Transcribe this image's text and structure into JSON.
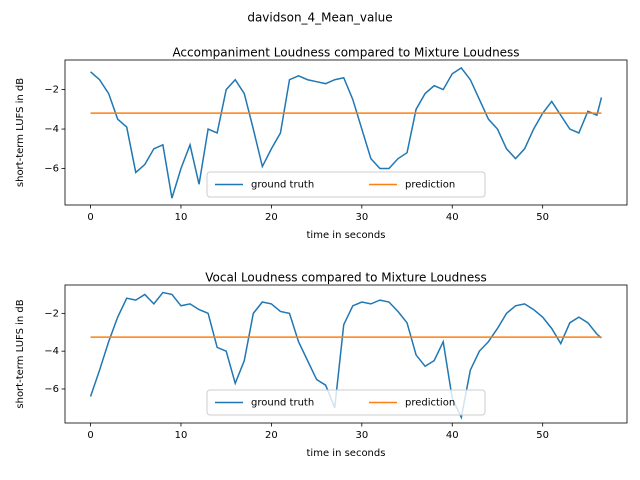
{
  "title": "davidson_4_Mean_value",
  "chart_data": [
    {
      "type": "line",
      "title": "Accompaniment Loudness compared to Mixture Loudness",
      "x_label": "time in seconds",
      "y_label": "short-term LUFS in dB",
      "x": [
        0,
        1,
        2,
        3,
        4,
        5,
        6,
        7,
        8,
        9,
        10,
        11,
        12,
        13,
        14,
        15,
        16,
        17,
        18,
        19,
        20,
        21,
        22,
        23,
        24,
        25,
        26,
        27,
        28,
        29,
        30,
        31,
        32,
        33,
        34,
        35,
        36,
        37,
        38,
        39,
        40,
        41,
        42,
        43,
        44,
        45,
        46,
        47,
        48,
        49,
        50,
        51,
        52,
        53,
        54,
        55,
        56,
        56.5
      ],
      "series": [
        {
          "name": "ground truth",
          "color": "#1f77b4",
          "values": [
            -1.1,
            -1.5,
            -2.2,
            -3.5,
            -3.9,
            -6.2,
            -5.8,
            -5.0,
            -4.8,
            -7.5,
            -6.0,
            -4.8,
            -6.8,
            -4.0,
            -4.2,
            -2.0,
            -1.5,
            -2.2,
            -4.0,
            -5.9,
            -5.0,
            -4.2,
            -1.5,
            -1.3,
            -1.5,
            -1.6,
            -1.7,
            -1.5,
            -1.4,
            -2.5,
            -4.0,
            -5.5,
            -6.0,
            -6.0,
            -5.5,
            -5.2,
            -3.0,
            -2.2,
            -1.8,
            -2.0,
            -1.2,
            -0.9,
            -1.5,
            -2.5,
            -3.5,
            -4.0,
            -5.0,
            -5.5,
            -5.0,
            -4.0,
            -3.2,
            -2.6,
            -3.3,
            -4.0,
            -4.2,
            -3.1,
            -3.3,
            -2.4
          ]
        },
        {
          "name": "prediction",
          "color": "#ff7f0e",
          "values": [
            -3.19,
            -3.19,
            -3.19,
            -3.19,
            -3.19,
            -3.19,
            -3.19,
            -3.19,
            -3.19,
            -3.19,
            -3.19,
            -3.19,
            -3.19,
            -3.19,
            -3.19,
            -3.19,
            -3.19,
            -3.19,
            -3.19,
            -3.19,
            -3.19,
            -3.19,
            -3.19,
            -3.19,
            -3.19,
            -3.19,
            -3.19,
            -3.19,
            -3.19,
            -3.19,
            -3.19,
            -3.19,
            -3.19,
            -3.19,
            -3.19,
            -3.19,
            -3.19,
            -3.19,
            -3.19,
            -3.19,
            -3.19,
            -3.19,
            -3.19,
            -3.19,
            -3.19,
            -3.19,
            -3.19,
            -3.19,
            -3.19,
            -3.19,
            -3.19,
            -3.19,
            -3.19,
            -3.19,
            -3.19,
            -3.19,
            -3.19,
            -3.19
          ]
        }
      ],
      "xlim": [
        -2.825,
        59.325
      ],
      "xticks": [
        0,
        10,
        20,
        30,
        40,
        50
      ],
      "ylim": [
        -7.85,
        -0.5
      ],
      "yticks": [
        {
          "value": -6,
          "label": "−6"
        },
        {
          "value": -4,
          "label": "−4"
        },
        {
          "value": -2,
          "label": "−2"
        }
      ],
      "legend": "lower center"
    },
    {
      "type": "line",
      "title": "Vocal Loudness compared to Mixture Loudness",
      "x_label": "time in seconds",
      "y_label": "short-term LUFS in dB",
      "x": [
        0,
        1,
        2,
        3,
        4,
        5,
        6,
        7,
        8,
        9,
        10,
        11,
        12,
        13,
        14,
        15,
        16,
        17,
        18,
        19,
        20,
        21,
        22,
        23,
        24,
        25,
        26,
        27,
        28,
        29,
        30,
        31,
        32,
        33,
        34,
        35,
        36,
        37,
        38,
        39,
        40,
        41,
        42,
        43,
        44,
        45,
        46,
        47,
        48,
        49,
        50,
        51,
        52,
        53,
        54,
        55,
        56,
        56.5
      ],
      "series": [
        {
          "name": "ground truth",
          "color": "#1f77b4",
          "values": [
            -6.4,
            -5.0,
            -3.5,
            -2.2,
            -1.2,
            -1.3,
            -1.0,
            -1.5,
            -0.9,
            -1.0,
            -1.6,
            -1.5,
            -1.8,
            -2.0,
            -3.8,
            -4.0,
            -5.7,
            -4.5,
            -2.0,
            -1.4,
            -1.5,
            -1.9,
            -2.0,
            -3.5,
            -4.5,
            -5.5,
            -5.8,
            -7.0,
            -2.6,
            -1.6,
            -1.4,
            -1.5,
            -1.3,
            -1.4,
            -1.9,
            -2.5,
            -4.2,
            -4.8,
            -4.5,
            -3.5,
            -6.5,
            -7.5,
            -5.0,
            -4.0,
            -3.5,
            -2.8,
            -2.0,
            -1.6,
            -1.5,
            -1.8,
            -2.2,
            -2.8,
            -3.6,
            -2.5,
            -2.2,
            -2.5,
            -3.1,
            -3.3
          ]
        },
        {
          "name": "prediction",
          "color": "#ff7f0e",
          "values": [
            -3.26,
            -3.26,
            -3.26,
            -3.26,
            -3.26,
            -3.26,
            -3.26,
            -3.26,
            -3.26,
            -3.26,
            -3.26,
            -3.26,
            -3.26,
            -3.26,
            -3.26,
            -3.26,
            -3.26,
            -3.26,
            -3.26,
            -3.26,
            -3.26,
            -3.26,
            -3.26,
            -3.26,
            -3.26,
            -3.26,
            -3.26,
            -3.26,
            -3.26,
            -3.26,
            -3.26,
            -3.26,
            -3.26,
            -3.26,
            -3.26,
            -3.26,
            -3.26,
            -3.26,
            -3.26,
            -3.26,
            -3.26,
            -3.26,
            -3.26,
            -3.26,
            -3.26,
            -3.26,
            -3.26,
            -3.26,
            -3.26,
            -3.26,
            -3.26,
            -3.26,
            -3.26,
            -3.26,
            -3.26,
            -3.26,
            -3.26,
            -3.26
          ]
        }
      ],
      "xlim": [
        -2.825,
        59.325
      ],
      "xticks": [
        0,
        10,
        20,
        30,
        40,
        50
      ],
      "ylim": [
        -7.8,
        -0.5
      ],
      "yticks": [
        {
          "value": -6,
          "label": "−6"
        },
        {
          "value": -4,
          "label": "−4"
        },
        {
          "value": -2,
          "label": "−2"
        }
      ],
      "legend": "lower center"
    }
  ]
}
